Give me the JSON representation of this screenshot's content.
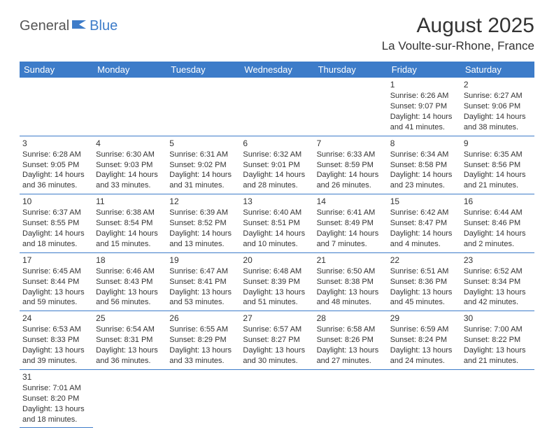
{
  "logo": {
    "part1": "General",
    "part2": "Blue"
  },
  "title": "August 2025",
  "location": "La Voulte-sur-Rhone, France",
  "colors": {
    "header_bg": "#3d7cc9",
    "header_fg": "#ffffff",
    "border": "#3d7cc9",
    "text": "#333333",
    "logo_gray": "#555555",
    "logo_blue": "#3d7cc9"
  },
  "weekdays": [
    "Sunday",
    "Monday",
    "Tuesday",
    "Wednesday",
    "Thursday",
    "Friday",
    "Saturday"
  ],
  "weeks": [
    [
      null,
      null,
      null,
      null,
      null,
      {
        "n": "1",
        "sunrise": "6:26 AM",
        "sunset": "9:07 PM",
        "daylight": "14 hours and 41 minutes."
      },
      {
        "n": "2",
        "sunrise": "6:27 AM",
        "sunset": "9:06 PM",
        "daylight": "14 hours and 38 minutes."
      }
    ],
    [
      {
        "n": "3",
        "sunrise": "6:28 AM",
        "sunset": "9:05 PM",
        "daylight": "14 hours and 36 minutes."
      },
      {
        "n": "4",
        "sunrise": "6:30 AM",
        "sunset": "9:03 PM",
        "daylight": "14 hours and 33 minutes."
      },
      {
        "n": "5",
        "sunrise": "6:31 AM",
        "sunset": "9:02 PM",
        "daylight": "14 hours and 31 minutes."
      },
      {
        "n": "6",
        "sunrise": "6:32 AM",
        "sunset": "9:01 PM",
        "daylight": "14 hours and 28 minutes."
      },
      {
        "n": "7",
        "sunrise": "6:33 AM",
        "sunset": "8:59 PM",
        "daylight": "14 hours and 26 minutes."
      },
      {
        "n": "8",
        "sunrise": "6:34 AM",
        "sunset": "8:58 PM",
        "daylight": "14 hours and 23 minutes."
      },
      {
        "n": "9",
        "sunrise": "6:35 AM",
        "sunset": "8:56 PM",
        "daylight": "14 hours and 21 minutes."
      }
    ],
    [
      {
        "n": "10",
        "sunrise": "6:37 AM",
        "sunset": "8:55 PM",
        "daylight": "14 hours and 18 minutes."
      },
      {
        "n": "11",
        "sunrise": "6:38 AM",
        "sunset": "8:54 PM",
        "daylight": "14 hours and 15 minutes."
      },
      {
        "n": "12",
        "sunrise": "6:39 AM",
        "sunset": "8:52 PM",
        "daylight": "14 hours and 13 minutes."
      },
      {
        "n": "13",
        "sunrise": "6:40 AM",
        "sunset": "8:51 PM",
        "daylight": "14 hours and 10 minutes."
      },
      {
        "n": "14",
        "sunrise": "6:41 AM",
        "sunset": "8:49 PM",
        "daylight": "14 hours and 7 minutes."
      },
      {
        "n": "15",
        "sunrise": "6:42 AM",
        "sunset": "8:47 PM",
        "daylight": "14 hours and 4 minutes."
      },
      {
        "n": "16",
        "sunrise": "6:44 AM",
        "sunset": "8:46 PM",
        "daylight": "14 hours and 2 minutes."
      }
    ],
    [
      {
        "n": "17",
        "sunrise": "6:45 AM",
        "sunset": "8:44 PM",
        "daylight": "13 hours and 59 minutes."
      },
      {
        "n": "18",
        "sunrise": "6:46 AM",
        "sunset": "8:43 PM",
        "daylight": "13 hours and 56 minutes."
      },
      {
        "n": "19",
        "sunrise": "6:47 AM",
        "sunset": "8:41 PM",
        "daylight": "13 hours and 53 minutes."
      },
      {
        "n": "20",
        "sunrise": "6:48 AM",
        "sunset": "8:39 PM",
        "daylight": "13 hours and 51 minutes."
      },
      {
        "n": "21",
        "sunrise": "6:50 AM",
        "sunset": "8:38 PM",
        "daylight": "13 hours and 48 minutes."
      },
      {
        "n": "22",
        "sunrise": "6:51 AM",
        "sunset": "8:36 PM",
        "daylight": "13 hours and 45 minutes."
      },
      {
        "n": "23",
        "sunrise": "6:52 AM",
        "sunset": "8:34 PM",
        "daylight": "13 hours and 42 minutes."
      }
    ],
    [
      {
        "n": "24",
        "sunrise": "6:53 AM",
        "sunset": "8:33 PM",
        "daylight": "13 hours and 39 minutes."
      },
      {
        "n": "25",
        "sunrise": "6:54 AM",
        "sunset": "8:31 PM",
        "daylight": "13 hours and 36 minutes."
      },
      {
        "n": "26",
        "sunrise": "6:55 AM",
        "sunset": "8:29 PM",
        "daylight": "13 hours and 33 minutes."
      },
      {
        "n": "27",
        "sunrise": "6:57 AM",
        "sunset": "8:27 PM",
        "daylight": "13 hours and 30 minutes."
      },
      {
        "n": "28",
        "sunrise": "6:58 AM",
        "sunset": "8:26 PM",
        "daylight": "13 hours and 27 minutes."
      },
      {
        "n": "29",
        "sunrise": "6:59 AM",
        "sunset": "8:24 PM",
        "daylight": "13 hours and 24 minutes."
      },
      {
        "n": "30",
        "sunrise": "7:00 AM",
        "sunset": "8:22 PM",
        "daylight": "13 hours and 21 minutes."
      }
    ],
    [
      {
        "n": "31",
        "sunrise": "7:01 AM",
        "sunset": "8:20 PM",
        "daylight": "13 hours and 18 minutes."
      },
      null,
      null,
      null,
      null,
      null,
      null
    ]
  ]
}
